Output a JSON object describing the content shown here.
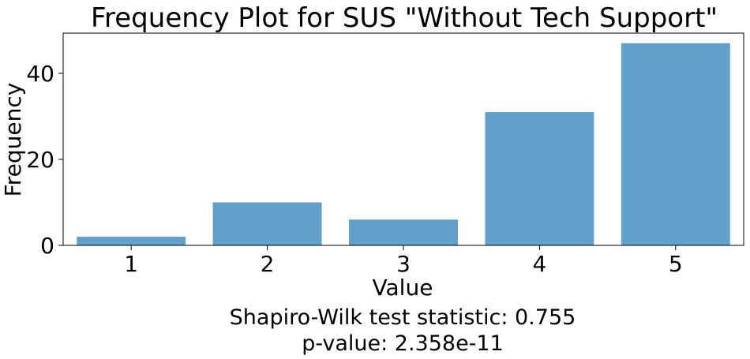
{
  "chart_data": {
    "type": "bar",
    "title": "Frequency Plot for SUS \"Without Tech Support\"",
    "xlabel": "Value",
    "ylabel": "Frequency",
    "categories": [
      "1",
      "2",
      "3",
      "4",
      "5"
    ],
    "values": [
      2,
      10,
      6,
      31,
      47
    ],
    "ylim": [
      0,
      49.35
    ],
    "yticks": [
      0,
      20,
      40
    ],
    "grid": false,
    "bar_color": "#61a0cb"
  },
  "annotation": {
    "line1": "Shapiro-Wilk test statistic: 0.755",
    "line2": "p-value: 2.358e-11"
  }
}
